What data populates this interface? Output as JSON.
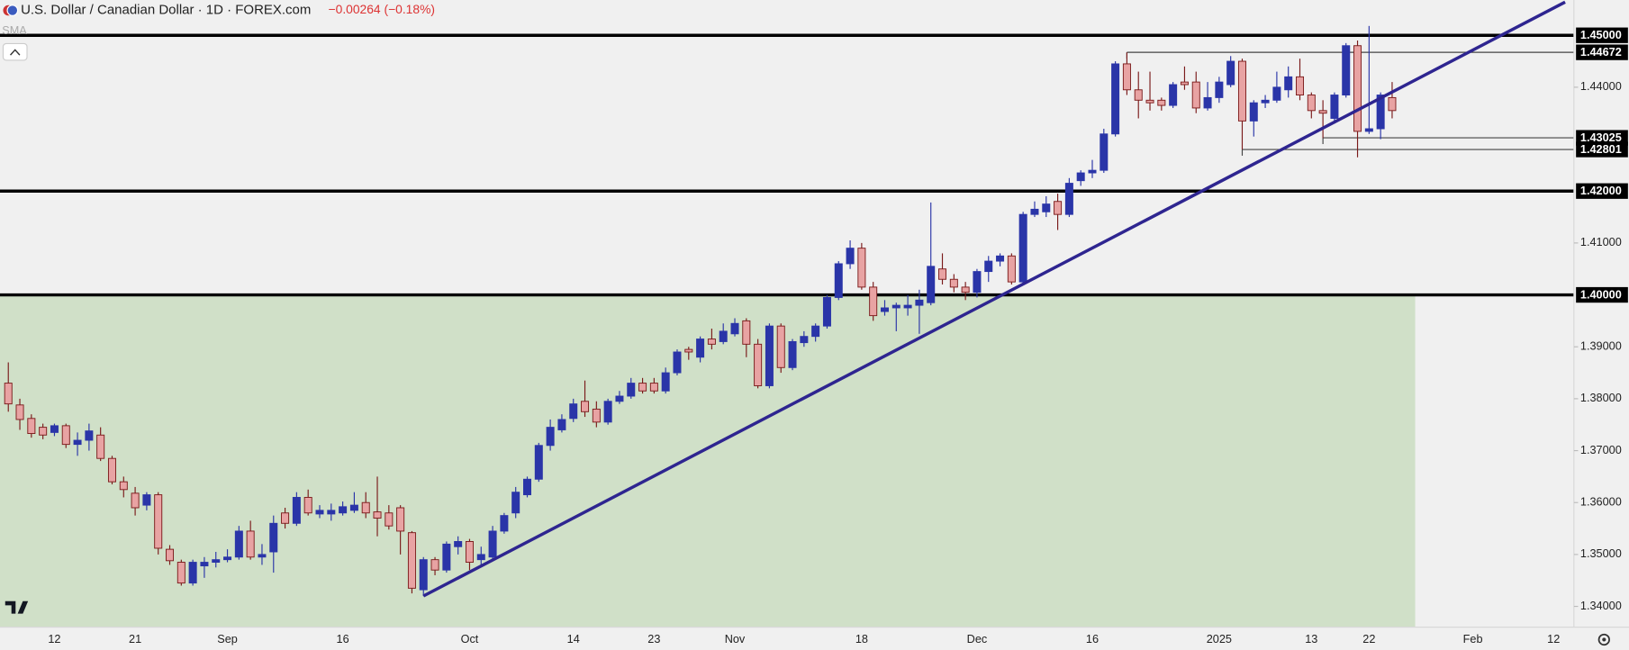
{
  "chart_data": {
    "type": "candlestick",
    "title": "U.S. Dollar / Canadian Dollar · 1D · FOREX.com",
    "change": "−0.00264 (−0.18%)",
    "indicator": "SMA",
    "up_color": "#2a35a8",
    "down_color": "#e8a3a3",
    "down_edge": "#7a1a1a",
    "categories": [
      null,
      null,
      null,
      null,
      "12",
      null,
      null,
      null,
      null,
      null,
      null,
      "21",
      null,
      null,
      null,
      null,
      null,
      null,
      null,
      "Sep",
      null,
      null,
      null,
      null,
      null,
      null,
      null,
      null,
      null,
      "16",
      null,
      null,
      null,
      null,
      null,
      null,
      null,
      null,
      null,
      null,
      "Oct",
      null,
      null,
      null,
      null,
      null,
      null,
      null,
      null,
      "14",
      null,
      null,
      null,
      null,
      null,
      null,
      "23",
      null,
      null,
      null,
      null,
      null,
      null,
      "Nov",
      null,
      null,
      null,
      null,
      null,
      null,
      null,
      null,
      null,
      null,
      "18",
      null,
      null,
      null,
      null,
      null,
      null,
      null,
      null,
      null,
      "Dec",
      null,
      null,
      null,
      null,
      null,
      null,
      null,
      null,
      null,
      "16",
      null,
      null,
      null,
      null,
      null,
      null,
      null,
      null,
      null,
      null,
      "2025",
      null,
      null,
      null,
      null,
      null,
      null,
      null,
      "13",
      null,
      null,
      null,
      null,
      "22",
      null,
      null,
      null,
      null,
      null,
      null,
      null,
      null,
      "Feb",
      null,
      null,
      null,
      null,
      null,
      null,
      "12",
      null
    ],
    "open": [
      1.383,
      1.3788,
      1.3762,
      1.3745,
      1.3735,
      1.3748,
      1.3712,
      1.372,
      1.373,
      1.3685,
      1.364,
      1.3618,
      1.3595,
      1.3615,
      1.351,
      1.3485,
      1.3445,
      1.3478,
      1.3485,
      1.349,
      1.3495,
      1.3545,
      1.3495,
      1.3505,
      1.358,
      1.356,
      1.361,
      1.3578,
      1.3578,
      1.358,
      1.3585,
      1.36,
      1.3582,
      1.358,
      1.359,
      1.3542,
      1.3432,
      1.349,
      1.347,
      1.3515,
      1.3525,
      1.349,
      1.3495,
      1.3545,
      1.358,
      1.3615,
      1.3645,
      1.371,
      1.374,
      1.3762,
      1.3795,
      1.378,
      1.3755,
      1.3795,
      1.3805,
      1.383,
      1.383,
      1.3815,
      1.385,
      1.3895,
      1.388,
      1.3915,
      1.391,
      1.3925,
      1.395,
      1.3905,
      1.3825,
      1.394,
      1.386,
      1.3908,
      1.392,
      1.394,
      1.3995,
      1.406,
      1.409,
      1.4015,
      1.3968,
      1.3975,
      1.3975,
      1.398,
      1.3985,
      1.405,
      1.403,
      1.4015,
      1.4005,
      1.4045,
      1.4065,
      1.4075,
      1.4025,
      1.4155,
      1.416,
      1.418,
      1.4155,
      1.422,
      1.4235,
      1.424,
      1.431,
      1.4445,
      1.4395,
      1.4375,
      1.4375,
      1.4365,
      1.441,
      1.441,
      1.436,
      1.438,
      1.4405,
      1.445,
      1.4335,
      1.437,
      1.4375,
      1.4395,
      1.442,
      1.4385,
      1.4355,
      1.434,
      1.4385,
      1.448,
      1.4315,
      1.432,
      1.438,
      null,
      null,
      null,
      null,
      null,
      null,
      null,
      null,
      null,
      null,
      null,
      null,
      null,
      null,
      null
    ],
    "high": [
      1.387,
      1.38,
      1.377,
      1.3752,
      1.3752,
      1.3752,
      1.3735,
      1.3752,
      1.3745,
      1.369,
      1.365,
      1.363,
      1.362,
      1.362,
      1.3518,
      1.349,
      1.349,
      1.3495,
      1.3505,
      1.351,
      1.3555,
      1.3565,
      1.352,
      1.3575,
      1.359,
      1.362,
      1.3625,
      1.3595,
      1.3598,
      1.3602,
      1.362,
      1.362,
      1.365,
      1.3595,
      1.3595,
      1.3545,
      1.3495,
      1.3495,
      1.3525,
      1.3535,
      1.353,
      1.3515,
      1.3555,
      1.358,
      1.363,
      1.365,
      1.3715,
      1.376,
      1.377,
      1.38,
      1.3835,
      1.3795,
      1.38,
      1.3815,
      1.384,
      1.384,
      1.384,
      1.386,
      1.3895,
      1.39,
      1.392,
      1.3935,
      1.3945,
      1.3955,
      1.3955,
      1.3915,
      1.3945,
      1.3945,
      1.3915,
      1.393,
      1.3945,
      1.4,
      1.4065,
      1.4105,
      1.41,
      1.4025,
      1.399,
      1.3985,
      1.4,
      1.401,
      1.4178,
      1.408,
      1.404,
      1.4025,
      1.405,
      1.4075,
      1.408,
      1.408,
      1.416,
      1.418,
      1.419,
      1.4195,
      1.4225,
      1.424,
      1.426,
      1.432,
      1.445,
      1.4467,
      1.443,
      1.443,
      1.438,
      1.441,
      1.444,
      1.443,
      1.441,
      1.442,
      1.446,
      1.4455,
      1.4375,
      1.4385,
      1.443,
      1.444,
      1.4455,
      1.439,
      1.4375,
      1.439,
      1.4485,
      1.449,
      1.4518,
      1.439,
      1.441,
      null,
      null,
      null,
      null,
      null,
      null,
      null,
      null,
      null,
      null,
      null,
      null,
      null,
      null,
      null
    ],
    "low": [
      1.3775,
      1.374,
      1.3725,
      1.3722,
      1.3728,
      1.3705,
      1.369,
      1.37,
      1.368,
      1.3635,
      1.361,
      1.3575,
      1.3585,
      1.35,
      1.348,
      1.344,
      1.344,
      1.3455,
      1.3475,
      1.3485,
      1.349,
      1.349,
      1.348,
      1.3465,
      1.355,
      1.3555,
      1.3575,
      1.357,
      1.3565,
      1.3575,
      1.358,
      1.357,
      1.3535,
      1.3548,
      1.35,
      1.3425,
      1.342,
      1.346,
      1.3465,
      1.35,
      1.347,
      1.348,
      1.349,
      1.354,
      1.357,
      1.361,
      1.364,
      1.37,
      1.3735,
      1.3755,
      1.3765,
      1.3745,
      1.375,
      1.379,
      1.38,
      1.381,
      1.381,
      1.381,
      1.3845,
      1.3875,
      1.387,
      1.3895,
      1.3905,
      1.392,
      1.388,
      1.382,
      1.382,
      1.385,
      1.3855,
      1.39,
      1.391,
      1.3935,
      1.399,
      1.405,
      1.401,
      1.395,
      1.396,
      1.393,
      1.396,
      1.3925,
      1.398,
      1.402,
      1.4005,
      1.399,
      1.3995,
      1.4025,
      1.4055,
      1.402,
      1.402,
      1.415,
      1.415,
      1.4125,
      1.415,
      1.421,
      1.4225,
      1.4235,
      1.4305,
      1.4385,
      1.434,
      1.4355,
      1.4355,
      1.436,
      1.4395,
      1.435,
      1.4355,
      1.437,
      1.44,
      1.428,
      1.4305,
      1.436,
      1.437,
      1.438,
      1.4375,
      1.434,
      1.4302,
      1.433,
      1.438,
      1.4265,
      1.431,
      1.43,
      1.434,
      null,
      null,
      null,
      null,
      null,
      null,
      null,
      null,
      null,
      null,
      null,
      null,
      null,
      null,
      null
    ],
    "close": [
      1.379,
      1.376,
      1.3733,
      1.373,
      1.3748,
      1.3712,
      1.372,
      1.3738,
      1.3685,
      1.364,
      1.3625,
      1.359,
      1.3615,
      1.3512,
      1.3488,
      1.3445,
      1.3485,
      1.3485,
      1.349,
      1.3495,
      1.3545,
      1.3495,
      1.35,
      1.356,
      1.356,
      1.361,
      1.358,
      1.3585,
      1.3585,
      1.3592,
      1.3595,
      1.358,
      1.357,
      1.3555,
      1.3545,
      1.3435,
      1.349,
      1.347,
      1.352,
      1.3525,
      1.3485,
      1.35,
      1.3545,
      1.3575,
      1.362,
      1.3645,
      1.371,
      1.3745,
      1.376,
      1.379,
      1.3775,
      1.3755,
      1.3795,
      1.3805,
      1.383,
      1.3815,
      1.3815,
      1.385,
      1.389,
      1.389,
      1.3915,
      1.3905,
      1.393,
      1.3945,
      1.3905,
      1.3825,
      1.394,
      1.386,
      1.391,
      1.392,
      1.394,
      1.3995,
      1.406,
      1.409,
      1.4015,
      1.396,
      1.3975,
      1.398,
      1.398,
      1.399,
      1.4055,
      1.403,
      1.4015,
      1.4005,
      1.4045,
      1.4065,
      1.4075,
      1.4025,
      1.4155,
      1.4165,
      1.4175,
      1.4155,
      1.4215,
      1.4235,
      1.424,
      1.431,
      1.4445,
      1.4395,
      1.4375,
      1.437,
      1.4365,
      1.4405,
      1.4405,
      1.436,
      1.438,
      1.441,
      1.445,
      1.4335,
      1.437,
      1.4375,
      1.44,
      1.442,
      1.4385,
      1.4355,
      1.435,
      1.4385,
      1.448,
      1.4315,
      1.432,
      1.4385,
      1.4355,
      null,
      null,
      null,
      null,
      null,
      null,
      null,
      null,
      null,
      null,
      null,
      null,
      null,
      null,
      null
    ],
    "ylim": [
      1.336,
      1.4568
    ],
    "yticks": [
      {
        "value": 1.34,
        "label": "1.34000"
      },
      {
        "value": 1.35,
        "label": "1.35000"
      },
      {
        "value": 1.36,
        "label": "1.36000"
      },
      {
        "value": 1.37,
        "label": "1.37000"
      },
      {
        "value": 1.38,
        "label": "1.38000"
      },
      {
        "value": 1.39,
        "label": "1.39000"
      },
      {
        "value": 1.41,
        "label": "1.41000"
      },
      {
        "value": 1.44,
        "label": "1.44000"
      }
    ],
    "levels": [
      {
        "value": 1.45,
        "label": "1.45000",
        "style": "thick",
        "start": 0
      },
      {
        "value": 1.44672,
        "label": "1.44672",
        "style": "thin",
        "start": 97
      },
      {
        "value": 1.43025,
        "label": "1.43025",
        "style": "thin",
        "start": 114
      },
      {
        "value": 1.42801,
        "label": "1.42801",
        "style": "thin",
        "start": 107
      },
      {
        "value": 1.42,
        "label": "1.42000",
        "style": "thick",
        "start": 0
      },
      {
        "value": 1.4,
        "label": "1.40000",
        "style": "thick",
        "start": 0
      }
    ],
    "trendline": {
      "x": [
        36,
        135
      ],
      "y": [
        1.342,
        1.4564
      ],
      "color": "#2e2590"
    },
    "zone": {
      "top": 1.4,
      "end": 122,
      "color": "#d0e0c8"
    },
    "grid": false
  }
}
